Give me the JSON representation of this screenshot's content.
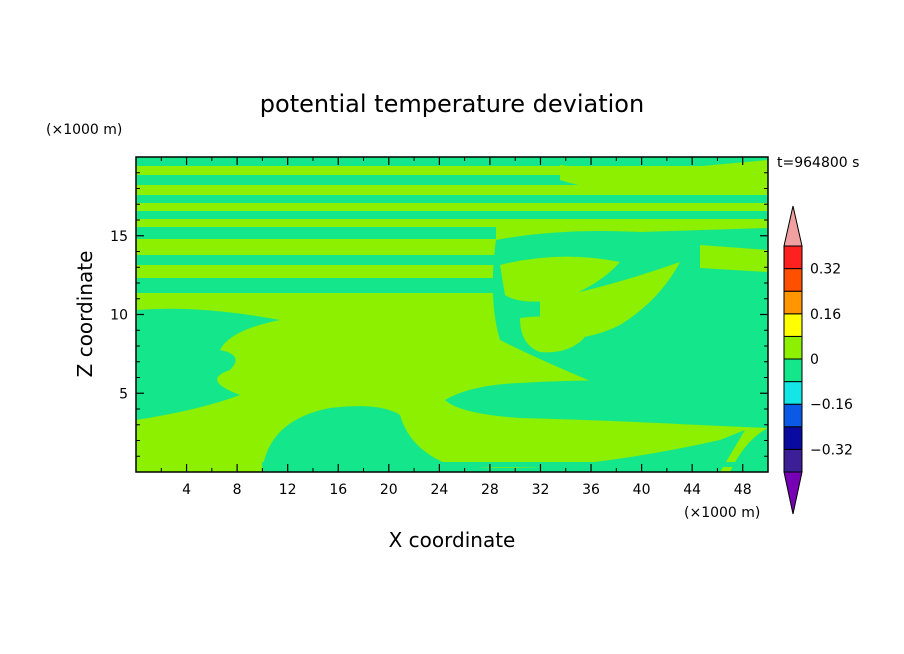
{
  "chart_data": {
    "type": "heatmap",
    "title": "potential temperature deviation",
    "xlabel": "X coordinate",
    "ylabel": "Z coordinate",
    "x_unit": "(×1000 m)",
    "y_unit": "(×1000 m)",
    "time_label": "t=964800 s",
    "xlim": [
      0,
      50
    ],
    "ylim": [
      0,
      20
    ],
    "x_ticks": [
      4,
      8,
      12,
      16,
      20,
      24,
      28,
      32,
      36,
      40,
      44,
      48
    ],
    "y_ticks": [
      5,
      10,
      15
    ],
    "colorbar": {
      "levels": [
        -0.4,
        -0.32,
        -0.24,
        -0.16,
        -0.08,
        0,
        0.08,
        0.16,
        0.24,
        0.32,
        0.4
      ],
      "labels": [
        {
          "value": 0.32,
          "text": "0.32"
        },
        {
          "value": 0.16,
          "text": "0.16"
        },
        {
          "value": 0,
          "text": "0"
        },
        {
          "value": -0.16,
          "text": "−0.16"
        },
        {
          "value": -0.32,
          "text": "−0.32"
        }
      ],
      "colors": [
        "#3c1e96",
        "#0a0aa0",
        "#0a5ae6",
        "#14e6e6",
        "#14e68c",
        "#8cf000",
        "#ffff00",
        "#ff9600",
        "#ff5000",
        "#ff2020"
      ],
      "under_color": "#7800b4",
      "over_color": "#f0a0a0"
    },
    "field_colors": {
      "below_zero": "#14e68c",
      "above_zero": "#8cf000"
    }
  }
}
